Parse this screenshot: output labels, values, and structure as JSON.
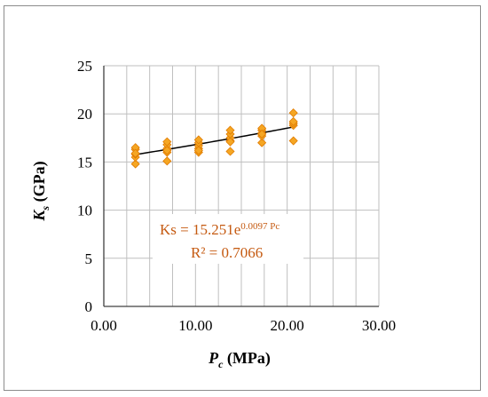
{
  "chart_data": {
    "type": "scatter",
    "xlabel": {
      "symbol": "P",
      "sub": "c",
      "unit": " (MPa)"
    },
    "ylabel": {
      "symbol": "K",
      "sub": "s",
      "unit": "  (GPa)"
    },
    "xlim": [
      0,
      30
    ],
    "ylim": [
      0,
      25
    ],
    "x_ticks": [
      0,
      10,
      20,
      30
    ],
    "x_tick_labels": [
      "0.00",
      "10.00",
      "20.00",
      "30.00"
    ],
    "y_ticks": [
      0,
      5,
      10,
      15,
      20,
      25
    ],
    "y_tick_labels": [
      "0",
      "5",
      "10",
      "15",
      "20",
      "25"
    ],
    "grid": "major, both axes",
    "series": [
      {
        "marker": "diamond",
        "color": "#f5a623",
        "edge_color": "#e07b00",
        "x": [
          3.45,
          3.45,
          3.45,
          3.45,
          3.45,
          3.45,
          6.9,
          6.9,
          6.9,
          6.9,
          6.9,
          6.9,
          10.34,
          10.34,
          10.34,
          10.34,
          10.34,
          10.34,
          13.79,
          13.79,
          13.79,
          13.79,
          13.79,
          13.79,
          17.24,
          17.24,
          17.24,
          17.24,
          17.24,
          17.24,
          20.68,
          20.68,
          20.68,
          20.68,
          20.68
        ],
        "y": [
          14.8,
          15.5,
          15.8,
          16.3,
          16.5,
          15.9,
          15.1,
          16.0,
          16.4,
          16.8,
          17.1,
          16.2,
          16.0,
          16.4,
          16.7,
          17.0,
          17.3,
          16.2,
          16.1,
          17.2,
          17.5,
          17.9,
          18.3,
          17.1,
          17.0,
          17.7,
          18.0,
          18.3,
          18.5,
          17.9,
          17.2,
          18.8,
          19.0,
          19.2,
          20.1
        ]
      }
    ],
    "trendline": {
      "type": "exponential",
      "a": 15.251,
      "b": 0.0097,
      "x_range": [
        3.45,
        20.68
      ],
      "color": "#000000"
    },
    "annotation": {
      "equation_base": "Ks = 15.251e",
      "equation_exponent": "0.0097 Pc",
      "r_squared": "R² = 0.7066",
      "color": "#c55a11"
    }
  }
}
